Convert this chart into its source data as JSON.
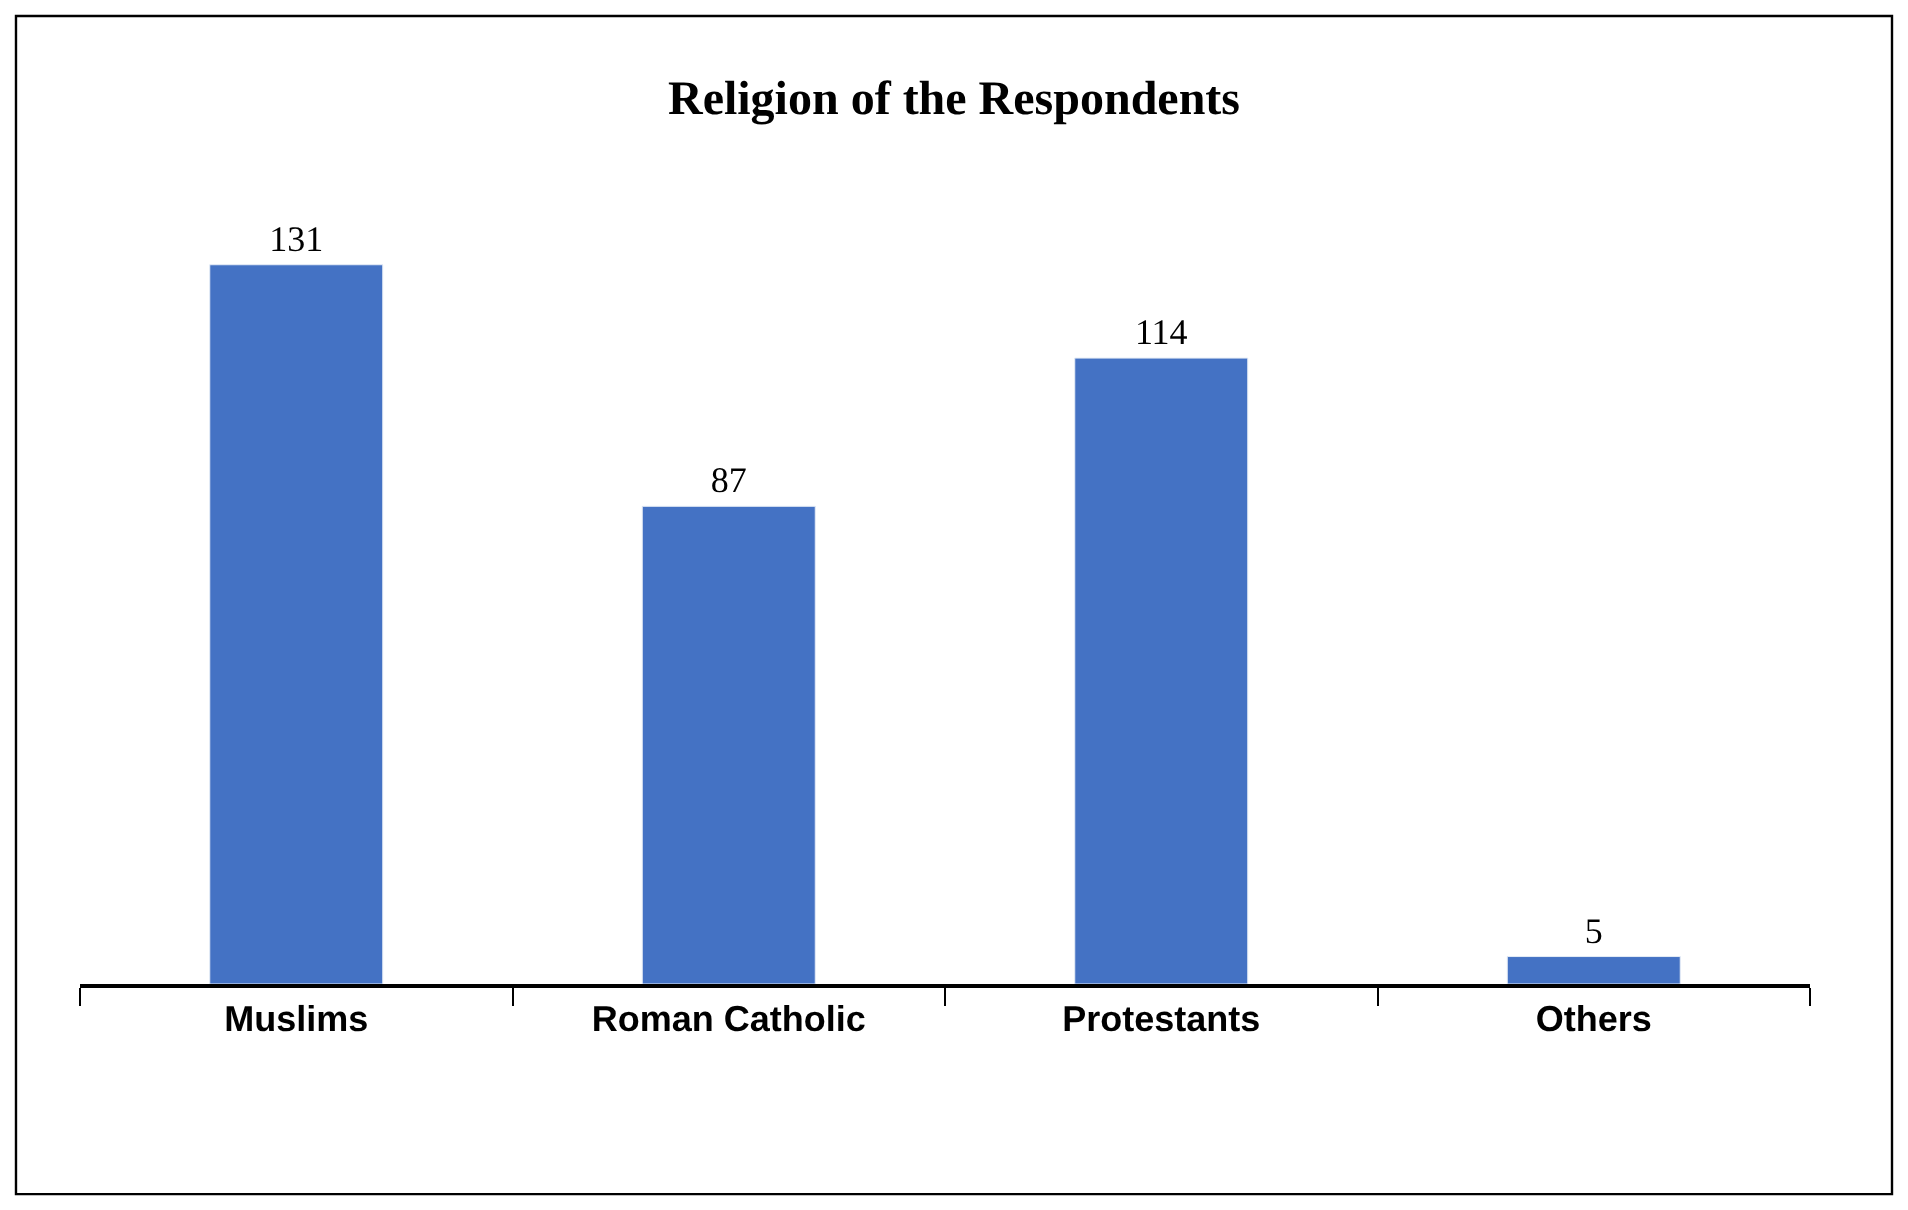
{
  "chart_data": {
    "type": "bar",
    "title": "Religion of the Respondents",
    "categories": [
      "Muslims",
      "Roman Catholic",
      "Protestants",
      "Others"
    ],
    "values": [
      131,
      87,
      114,
      5
    ],
    "color": "#4472c4",
    "data_labels": true,
    "tick_labels": "x"
  }
}
